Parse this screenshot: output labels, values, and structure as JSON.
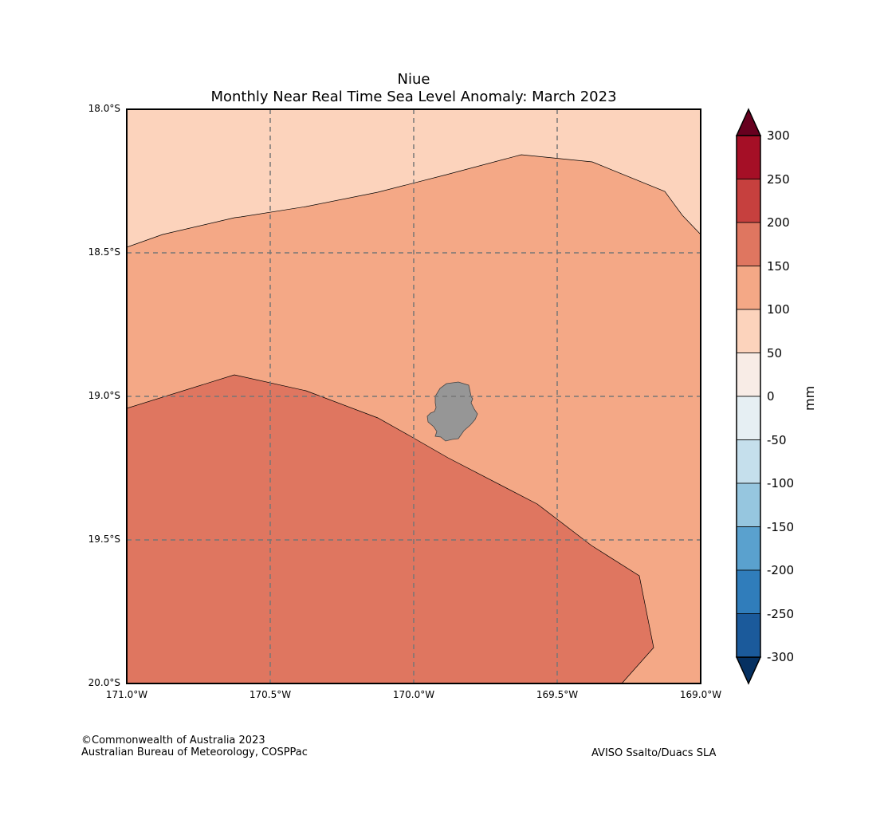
{
  "chart_data": {
    "type": "heatmap",
    "title": "Niue",
    "subtitle": "Monthly Near Real Time Sea Level Anomaly: March 2023",
    "xlabel": "",
    "ylabel": "",
    "xlim": [
      -171.0,
      -169.0
    ],
    "ylim": [
      -20.0,
      -18.0
    ],
    "x_ticks": [
      "171.0°W",
      "170.5°W",
      "170.0°W",
      "169.5°W",
      "169.0°W"
    ],
    "y_ticks": [
      "18.0°S",
      "18.5°S",
      "19.0°S",
      "19.5°S",
      "20.0°S"
    ],
    "grid": true,
    "colorbar": {
      "label": "mm",
      "levels": [
        "300",
        "250",
        "200",
        "150",
        "100",
        "50",
        "0",
        "-50",
        "-100",
        "-150",
        "-200",
        "-250",
        "-300"
      ],
      "colors": [
        "#a50f26",
        "#c6403e",
        "#df7660",
        "#f4a886",
        "#fcd3bc",
        "#f8ece6",
        "#e6eff3",
        "#c5dfec",
        "#96c6df",
        "#5aa1ce",
        "#307dbb",
        "#1b5a9b"
      ],
      "over_color": "#67001f",
      "under_color": "#053061"
    },
    "regions": [
      {
        "name": "50-100 mm",
        "color": "#fcd3bc"
      },
      {
        "name": "100-150 mm",
        "color": "#f4a886"
      },
      {
        "name": "150-200 mm",
        "color": "#df7660"
      }
    ],
    "land_color": "#969696"
  },
  "footer": {
    "copyright": "©Commonwealth of Australia 2023",
    "agency": "Australian Bureau of Meteorology, COSPPac",
    "source": "AVISO Ssalto/Duacs SLA"
  }
}
